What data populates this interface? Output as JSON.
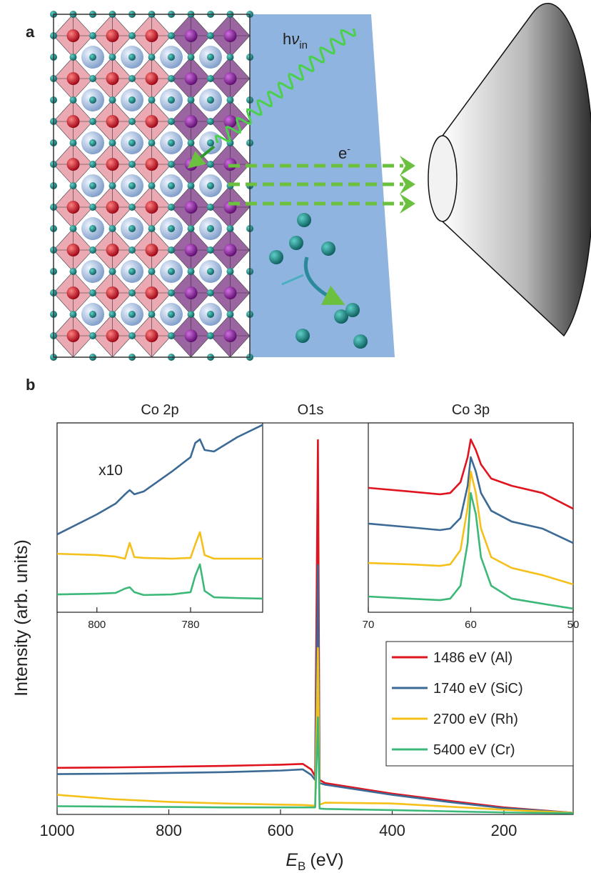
{
  "panel_a": {
    "label": "a",
    "photon": {
      "base": "h",
      "symbol": "ν",
      "subscript": "in"
    },
    "electron": {
      "base": "e",
      "superscript": "-"
    }
  },
  "panel_b_label": "b",
  "chart_data": [
    {
      "type": "line",
      "y_label": "Intensity (arb. units)",
      "x_label": {
        "symbol": "E",
        "subscript": "B",
        "unit": "(eV)"
      },
      "annotation": "O1s",
      "xlim": [
        1000,
        76
      ],
      "xticks": [
        1000,
        800,
        600,
        400,
        200
      ],
      "ylim": [
        0,
        100
      ],
      "legend": "right",
      "x": [
        1000,
        900,
        800,
        700,
        600,
        560,
        545,
        538,
        533,
        530,
        520,
        400,
        300,
        200,
        76
      ],
      "series": [
        {
          "name": "1486 eV (Al)",
          "color": "#e0141e",
          "values": [
            11.9,
            12.0,
            12.2,
            12.4,
            12.7,
            12.9,
            11.5,
            9.7,
            95.6,
            8.8,
            8.0,
            5.3,
            3.5,
            1.8,
            0.4
          ]
        },
        {
          "name": "1740 eV (SiC)",
          "color": "#3c6a96",
          "values": [
            10.3,
            10.4,
            10.6,
            10.8,
            11.2,
            11.5,
            10.1,
            8.8,
            63.7,
            8.0,
            7.6,
            5.0,
            3.2,
            1.6,
            0.4
          ]
        },
        {
          "name": "2700 eV (Rh)",
          "color": "#f5c01a",
          "values": [
            5.0,
            3.9,
            3.2,
            2.8,
            2.5,
            2.4,
            2.3,
            2.2,
            42.5,
            2.5,
            3.0,
            2.8,
            2.0,
            1.2,
            0.4
          ]
        },
        {
          "name": "5400 eV (Cr)",
          "color": "#3cb878",
          "values": [
            2.1,
            2.0,
            1.9,
            1.8,
            1.8,
            1.8,
            1.8,
            1.8,
            24.8,
            1.5,
            1.4,
            1.1,
            0.8,
            0.5,
            0.3
          ]
        }
      ]
    },
    {
      "type": "line",
      "title": "Co 2p",
      "annotation": "x10",
      "xlim": [
        808.5,
        764.6
      ],
      "xticks": [
        800,
        780
      ],
      "ylim": [
        0,
        100
      ],
      "x": [
        808.5,
        800,
        796,
        794,
        793,
        792,
        790,
        784,
        780,
        779,
        778,
        777,
        775,
        770,
        764.6
      ],
      "series": [
        {
          "color": "#3c6a96",
          "values": [
            41.1,
            51.7,
            57.4,
            62.3,
            64.5,
            62.3,
            63.8,
            74.3,
            81.9,
            89.4,
            91.3,
            85.7,
            84.9,
            92.5,
            99
          ]
        },
        {
          "color": "#f5c01a",
          "values": [
            30.9,
            30.2,
            29.4,
            28.3,
            36.6,
            29.1,
            28.7,
            28.3,
            28.7,
            35.8,
            42.3,
            30.2,
            28.3,
            28.3,
            28.3
          ]
        },
        {
          "color": "#3cb878",
          "values": [
            9.4,
            9.8,
            10.2,
            12.5,
            13.2,
            10.6,
            9.1,
            9.4,
            10.6,
            19.2,
            25.3,
            11.3,
            7.9,
            7.5,
            7.2
          ]
        }
      ]
    },
    {
      "type": "line",
      "title": "Co 3p",
      "xlim": [
        70,
        50
      ],
      "xticks": [
        70,
        60,
        50
      ],
      "ylim": [
        0,
        100
      ],
      "x": [
        70,
        66,
        63,
        62,
        61,
        60.3,
        60,
        59.5,
        59,
        58,
        56,
        53,
        50
      ],
      "series": [
        {
          "color": "#e0141e",
          "values": [
            65.7,
            63.8,
            62.3,
            63.0,
            68.7,
            81.9,
            91.3,
            85.7,
            78.1,
            70.6,
            66.8,
            63.0,
            54.7
          ]
        },
        {
          "color": "#3c6a96",
          "values": [
            46.8,
            44.9,
            43.4,
            44.2,
            49.8,
            66.8,
            81.9,
            74.3,
            63.0,
            53.6,
            47.9,
            44.2,
            36.6
          ]
        },
        {
          "color": "#f5c01a",
          "values": [
            26.0,
            25.3,
            24.5,
            25.3,
            32.8,
            55.5,
            74.3,
            63.0,
            44.2,
            29.1,
            23.4,
            19.6,
            14.7
          ]
        },
        {
          "color": "#3cb878",
          "values": [
            8.3,
            7.2,
            6.4,
            7.2,
            14.0,
            36.6,
            63.0,
            51.7,
            29.1,
            14.0,
            7.2,
            4.5,
            1.9
          ]
        }
      ]
    }
  ]
}
